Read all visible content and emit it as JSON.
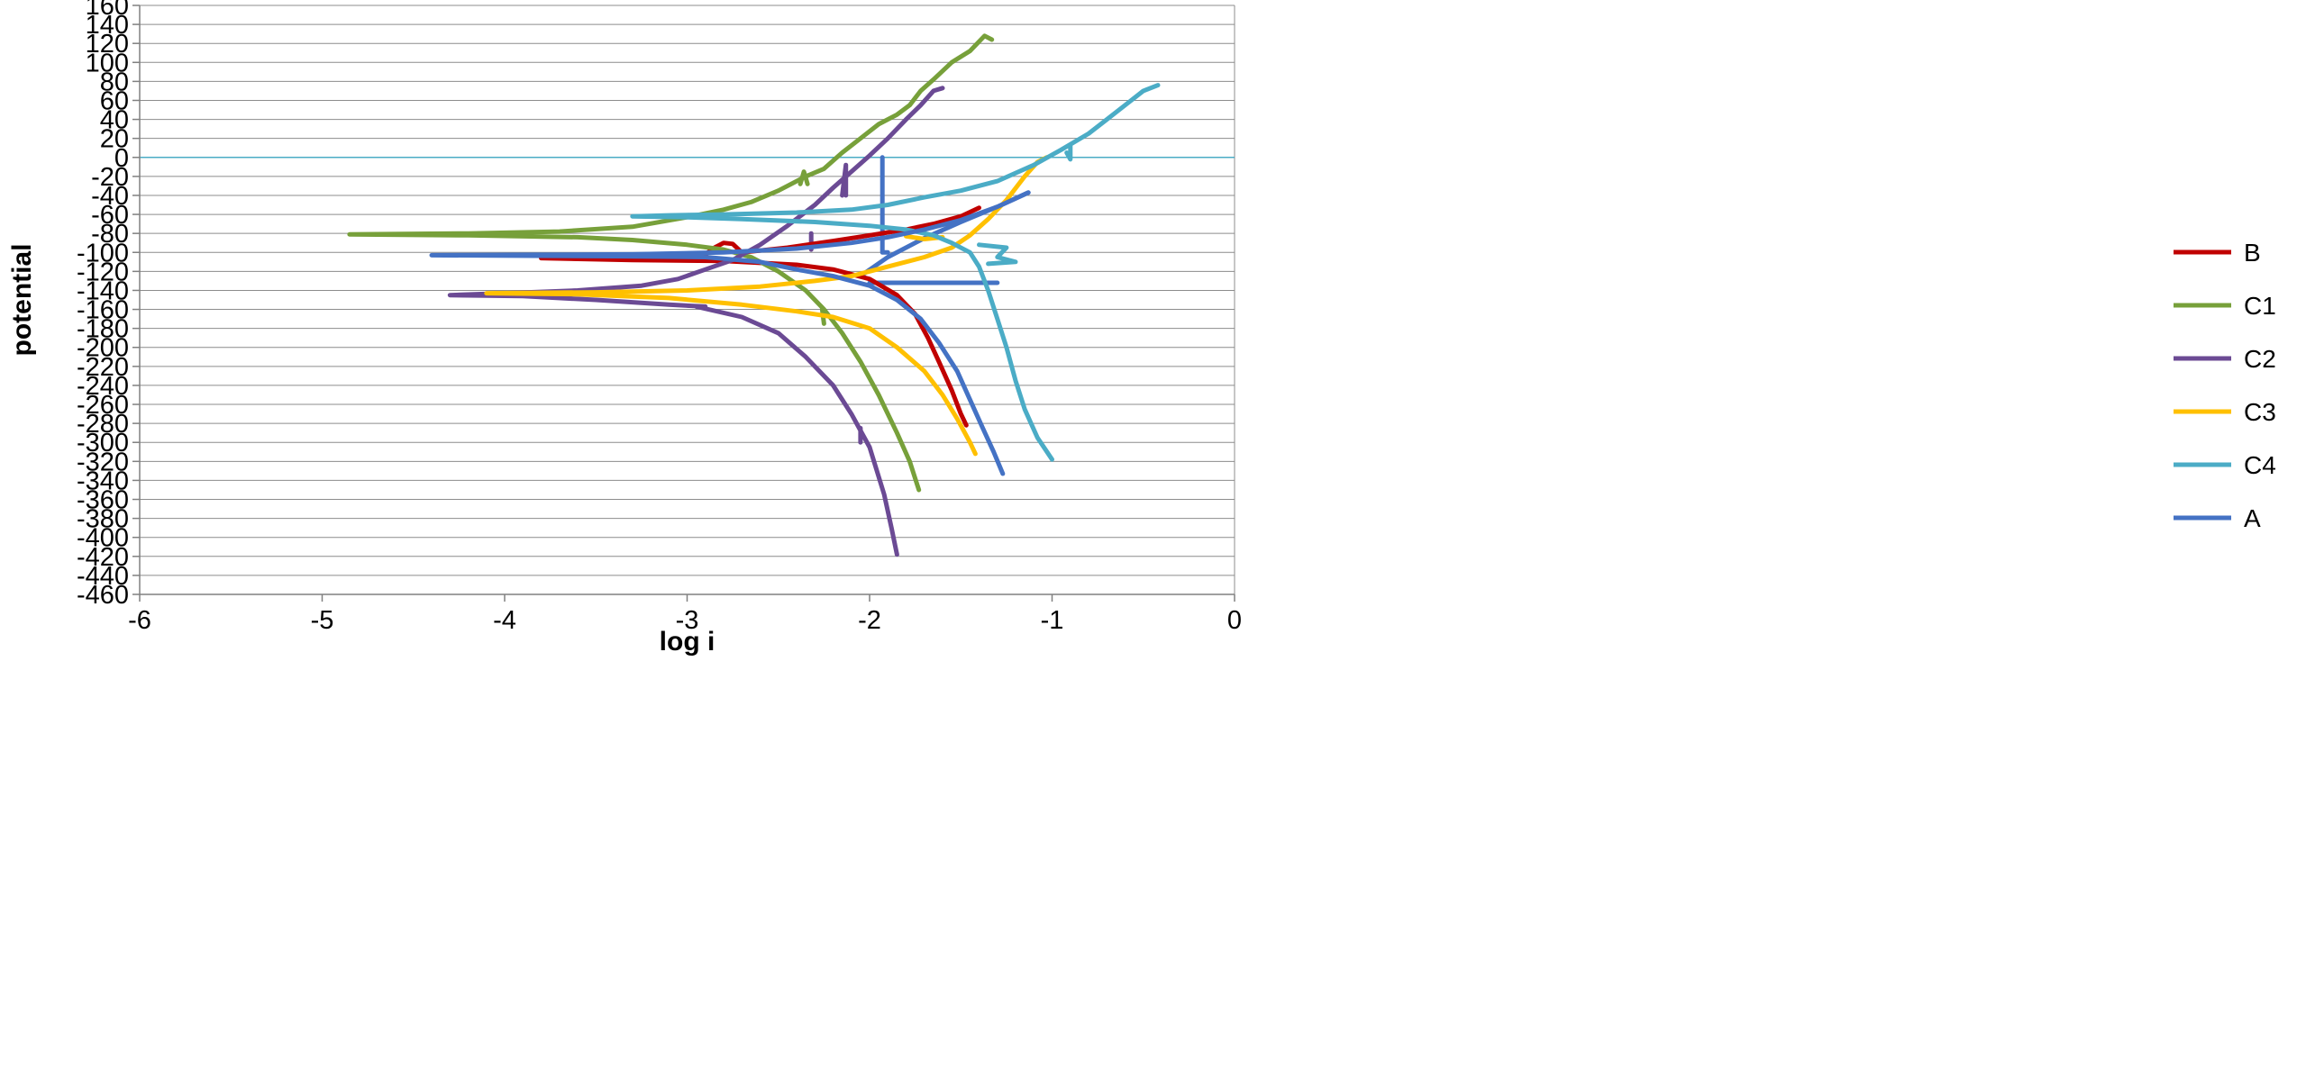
{
  "chart_data": {
    "type": "line",
    "title": "",
    "xlabel": "log i",
    "ylabel": "potential",
    "xlim": [
      -6,
      0
    ],
    "ylim": [
      -460,
      160
    ],
    "x_ticks": [
      -6,
      -5,
      -4,
      -3,
      -2,
      -1,
      0
    ],
    "y_ticks": [
      160,
      140,
      120,
      100,
      80,
      60,
      40,
      20,
      0,
      -20,
      -40,
      -60,
      -80,
      -100,
      -120,
      -140,
      -160,
      -180,
      -200,
      -220,
      -240,
      -260,
      -280,
      -300,
      -320,
      -340,
      -360,
      -380,
      -400,
      -420,
      -440,
      -460
    ],
    "grid": true,
    "legend": "right",
    "series": [
      {
        "name": "B",
        "color": "#C00000",
        "points": [
          [
            -1.4,
            -53
          ],
          [
            -1.5,
            -62
          ],
          [
            -1.65,
            -70
          ],
          [
            -1.8,
            -76
          ],
          [
            -2.0,
            -82
          ],
          [
            -2.2,
            -88
          ],
          [
            -2.45,
            -95
          ],
          [
            -2.7,
            -100
          ],
          [
            -2.75,
            -91
          ],
          [
            -2.8,
            -90
          ],
          [
            -2.85,
            -95
          ],
          [
            -2.9,
            -102
          ],
          [
            -3.05,
            -106
          ],
          [
            -3.4,
            -106
          ],
          [
            -3.8,
            -106
          ],
          [
            -3.3,
            -108
          ],
          [
            -2.8,
            -109
          ],
          [
            -2.4,
            -113
          ],
          [
            -2.2,
            -118
          ],
          [
            -2.0,
            -128
          ],
          [
            -1.85,
            -145
          ],
          [
            -1.75,
            -165
          ],
          [
            -1.68,
            -190
          ],
          [
            -1.62,
            -215
          ],
          [
            -1.55,
            -245
          ],
          [
            -1.5,
            -270
          ],
          [
            -1.47,
            -282
          ]
        ]
      },
      {
        "name": "C1",
        "color": "#77A03A",
        "points": [
          [
            -1.33,
            124
          ],
          [
            -1.37,
            128
          ],
          [
            -1.45,
            112
          ],
          [
            -1.55,
            100
          ],
          [
            -1.65,
            82
          ],
          [
            -1.72,
            70
          ],
          [
            -1.78,
            55
          ],
          [
            -1.85,
            45
          ],
          [
            -1.95,
            35
          ],
          [
            -2.05,
            20
          ],
          [
            -2.15,
            5
          ],
          [
            -2.25,
            -12
          ],
          [
            -2.35,
            -20
          ],
          [
            -2.5,
            -35
          ],
          [
            -2.65,
            -47
          ],
          [
            -2.8,
            -55
          ],
          [
            -3.0,
            -63
          ],
          [
            -3.3,
            -73
          ],
          [
            -3.7,
            -78
          ],
          [
            -4.2,
            -80
          ],
          [
            -4.85,
            -81
          ],
          [
            -4.2,
            -82
          ],
          [
            -3.6,
            -84
          ],
          [
            -3.3,
            -87
          ],
          [
            -3.0,
            -92
          ],
          [
            -2.8,
            -97
          ],
          [
            -2.65,
            -105
          ],
          [
            -2.5,
            -120
          ],
          [
            -2.35,
            -140
          ],
          [
            -2.25,
            -160
          ],
          [
            -2.15,
            -185
          ],
          [
            -2.05,
            -215
          ],
          [
            -1.95,
            -250
          ],
          [
            -1.85,
            -290
          ],
          [
            -1.78,
            -320
          ],
          [
            -1.73,
            -350
          ]
        ]
      },
      {
        "name": "C2",
        "color": "#6B4A94",
        "points": [
          [
            -1.6,
            73
          ],
          [
            -1.65,
            70
          ],
          [
            -1.72,
            55
          ],
          [
            -1.8,
            40
          ],
          [
            -1.9,
            20
          ],
          [
            -2.0,
            2
          ],
          [
            -2.1,
            -15
          ],
          [
            -2.2,
            -32
          ],
          [
            -2.3,
            -50
          ],
          [
            -2.45,
            -72
          ],
          [
            -2.6,
            -92
          ],
          [
            -2.75,
            -108
          ],
          [
            -2.9,
            -118
          ],
          [
            -3.05,
            -128
          ],
          [
            -3.25,
            -135
          ],
          [
            -3.6,
            -140
          ],
          [
            -4.0,
            -143
          ],
          [
            -4.3,
            -145
          ],
          [
            -3.9,
            -146
          ],
          [
            -3.5,
            -150
          ],
          [
            -3.1,
            -155
          ],
          [
            -2.9,
            -157
          ],
          [
            -2.95,
            -157
          ],
          [
            -2.7,
            -168
          ],
          [
            -2.5,
            -185
          ],
          [
            -2.35,
            -210
          ],
          [
            -2.2,
            -240
          ],
          [
            -2.1,
            -270
          ],
          [
            -2.0,
            -305
          ],
          [
            -1.92,
            -355
          ],
          [
            -1.88,
            -390
          ],
          [
            -1.85,
            -418
          ]
        ]
      },
      {
        "name": "C3",
        "color": "#FFC000",
        "points": [
          [
            -1.03,
            0
          ],
          [
            -1.08,
            -5
          ],
          [
            -1.15,
            -20
          ],
          [
            -1.25,
            -45
          ],
          [
            -1.35,
            -65
          ],
          [
            -1.45,
            -82
          ],
          [
            -1.55,
            -95
          ],
          [
            -1.7,
            -105
          ],
          [
            -1.9,
            -115
          ],
          [
            -2.1,
            -125
          ],
          [
            -2.3,
            -130
          ],
          [
            -2.6,
            -136
          ],
          [
            -3.0,
            -140
          ],
          [
            -3.5,
            -142
          ],
          [
            -4.1,
            -143
          ],
          [
            -3.6,
            -144
          ],
          [
            -3.1,
            -148
          ],
          [
            -2.7,
            -155
          ],
          [
            -2.4,
            -162
          ],
          [
            -2.2,
            -168
          ],
          [
            -2.0,
            -180
          ],
          [
            -1.85,
            -200
          ],
          [
            -1.7,
            -225
          ],
          [
            -1.6,
            -250
          ],
          [
            -1.52,
            -275
          ],
          [
            -1.45,
            -300
          ],
          [
            -1.42,
            -312
          ]
        ]
      },
      {
        "name": "C4",
        "color": "#4BACC6",
        "points": [
          [
            -0.42,
            76
          ],
          [
            -0.5,
            70
          ],
          [
            -0.6,
            55
          ],
          [
            -0.7,
            40
          ],
          [
            -0.8,
            25
          ],
          [
            -0.95,
            8
          ],
          [
            -1.1,
            -8
          ],
          [
            -1.3,
            -25
          ],
          [
            -1.5,
            -35
          ],
          [
            -1.7,
            -42
          ],
          [
            -1.9,
            -50
          ],
          [
            -2.1,
            -55
          ],
          [
            -2.4,
            -58
          ],
          [
            -2.8,
            -60
          ],
          [
            -3.1,
            -61
          ],
          [
            -3.3,
            -62
          ],
          [
            -3.0,
            -63
          ],
          [
            -2.7,
            -65
          ],
          [
            -2.3,
            -68
          ],
          [
            -2.0,
            -72
          ],
          [
            -1.8,
            -76
          ],
          [
            -1.65,
            -82
          ],
          [
            -1.55,
            -90
          ],
          [
            -1.45,
            -100
          ],
          [
            -1.4,
            -115
          ],
          [
            -1.35,
            -140
          ],
          [
            -1.3,
            -170
          ],
          [
            -1.25,
            -200
          ],
          [
            -1.2,
            -235
          ],
          [
            -1.15,
            -265
          ],
          [
            -1.08,
            -295
          ],
          [
            -1.0,
            -318
          ]
        ]
      },
      {
        "name": "A",
        "color": "#4472C4",
        "points": [
          [
            -1.13,
            -37
          ],
          [
            -1.3,
            -52
          ],
          [
            -1.5,
            -66
          ],
          [
            -1.7,
            -76
          ],
          [
            -1.9,
            -84
          ],
          [
            -2.1,
            -90
          ],
          [
            -2.4,
            -96
          ],
          [
            -2.8,
            -100
          ],
          [
            -3.3,
            -102
          ],
          [
            -4.4,
            -103
          ],
          [
            -3.4,
            -104
          ],
          [
            -2.9,
            -105
          ],
          [
            -2.6,
            -110
          ],
          [
            -2.4,
            -118
          ],
          [
            -2.2,
            -125
          ],
          [
            -2.0,
            -135
          ],
          [
            -1.85,
            -150
          ],
          [
            -1.72,
            -170
          ],
          [
            -1.62,
            -195
          ],
          [
            -1.52,
            -225
          ],
          [
            -1.45,
            -255
          ],
          [
            -1.38,
            -285
          ],
          [
            -1.32,
            -310
          ],
          [
            -1.27,
            -333
          ]
        ]
      }
    ],
    "extra_segments": [
      {
        "series": "A",
        "points": [
          [
            -1.93,
            0
          ],
          [
            -1.93,
            -100
          ],
          [
            -1.9,
            -100
          ]
        ]
      },
      {
        "series": "A",
        "points": [
          [
            -2.05,
            -125
          ],
          [
            -1.9,
            -105
          ],
          [
            -1.7,
            -85
          ],
          [
            -1.5,
            -68
          ],
          [
            -1.3,
            -52
          ],
          [
            -1.13,
            -37
          ]
        ]
      },
      {
        "series": "A",
        "points": [
          [
            -2.0,
            -132
          ],
          [
            -1.5,
            -132
          ],
          [
            -1.3,
            -132
          ]
        ]
      },
      {
        "series": "C2",
        "points": [
          [
            -2.13,
            -40
          ],
          [
            -2.13,
            -8
          ],
          [
            -2.15,
            -40
          ]
        ]
      },
      {
        "series": "C2",
        "points": [
          [
            -2.32,
            -80
          ],
          [
            -2.32,
            -97
          ]
        ]
      },
      {
        "series": "C1",
        "points": [
          [
            -2.38,
            -28
          ],
          [
            -2.36,
            -15
          ],
          [
            -2.34,
            -28
          ]
        ]
      },
      {
        "series": "C1",
        "points": [
          [
            -2.26,
            -160
          ],
          [
            -2.25,
            -175
          ]
        ]
      },
      {
        "series": "C3",
        "points": [
          [
            -1.8,
            -83
          ],
          [
            -1.7,
            -86
          ],
          [
            -1.6,
            -84
          ]
        ]
      },
      {
        "series": "C4",
        "points": [
          [
            -1.4,
            -92
          ],
          [
            -1.25,
            -95
          ],
          [
            -1.3,
            -105
          ],
          [
            -1.2,
            -110
          ],
          [
            -1.35,
            -112
          ]
        ]
      },
      {
        "series": "C4",
        "points": [
          [
            -0.92,
            5
          ],
          [
            -0.9,
            -2
          ],
          [
            -0.9,
            12
          ]
        ]
      },
      {
        "series": "C2",
        "points": [
          [
            -2.05,
            -285
          ],
          [
            -2.05,
            -300
          ]
        ]
      }
    ],
    "reference_lines": [
      {
        "orientation": "horizontal",
        "y": 0,
        "color": "#4BACC6"
      }
    ]
  }
}
